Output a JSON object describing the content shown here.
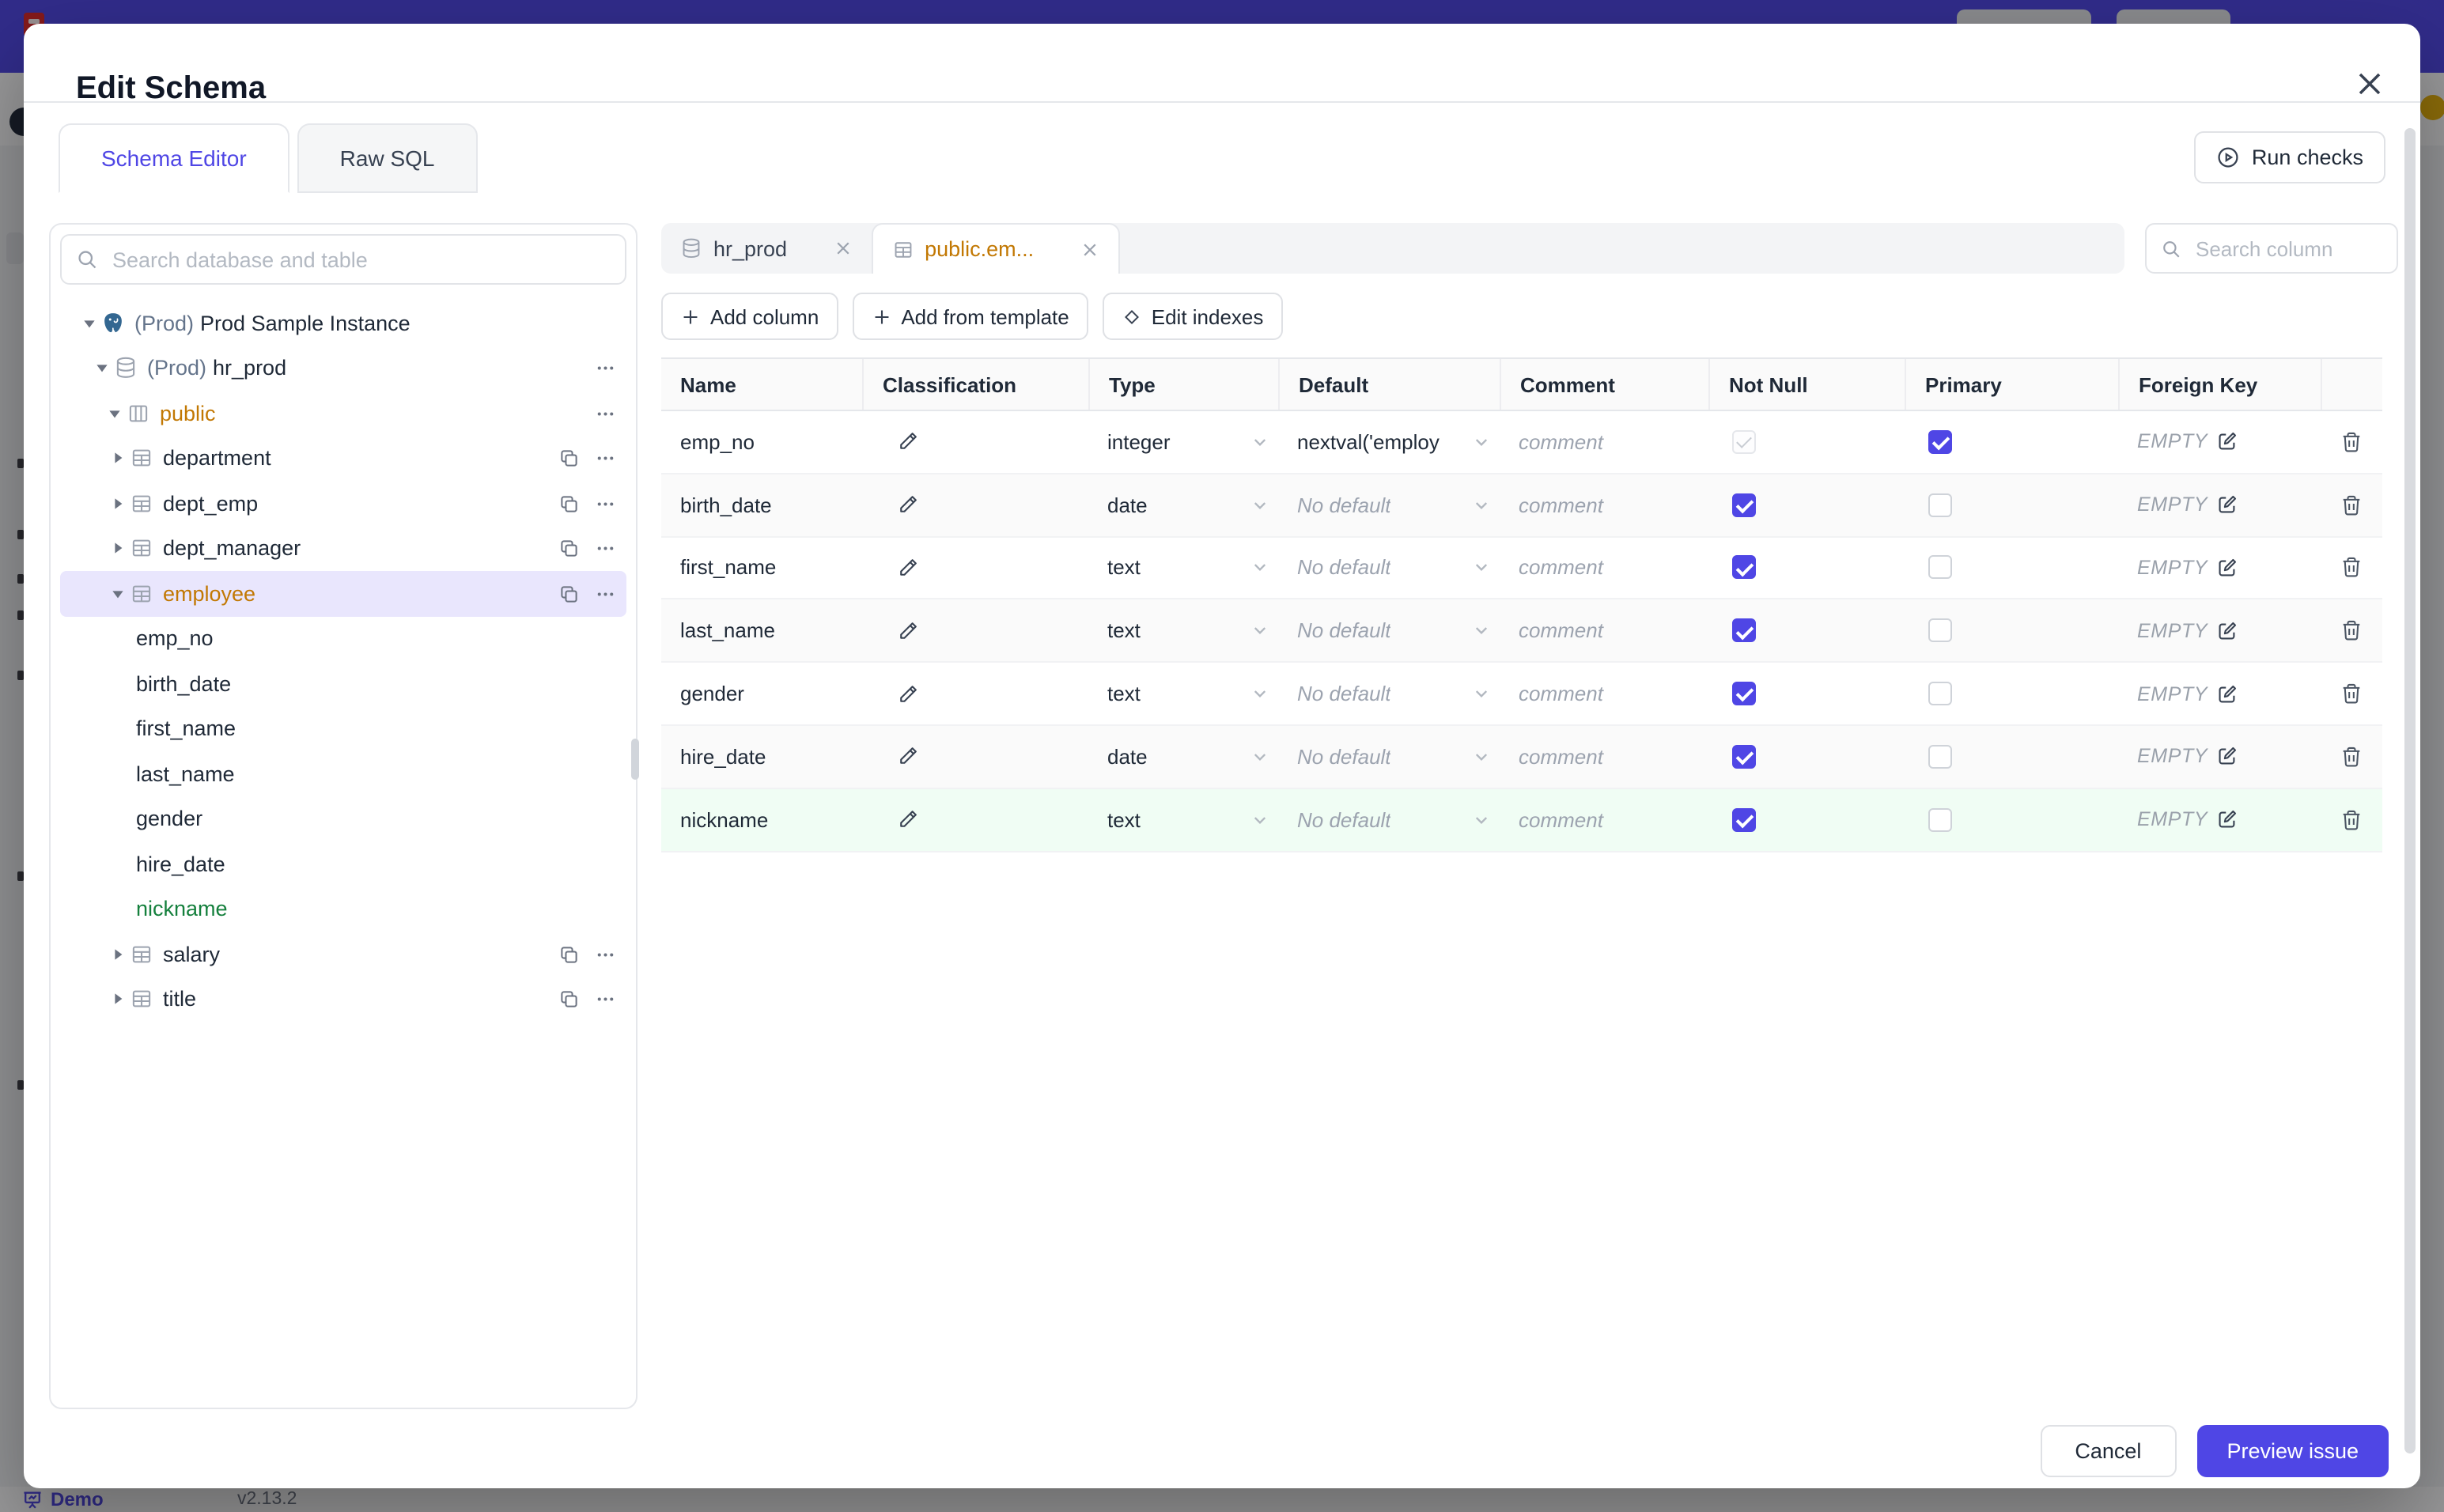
{
  "modal": {
    "title": "Edit Schema",
    "tabs": [
      {
        "label": "Schema Editor",
        "active": true
      },
      {
        "label": "Raw SQL",
        "active": false
      }
    ],
    "run_checks_label": "Run checks",
    "sidebar": {
      "search_placeholder": "Search database and table",
      "tree": [
        {
          "level": 0,
          "kind": "instance",
          "caret": "down",
          "icon": "postgres",
          "prefix": "(Prod)",
          "label": "Prod Sample Instance"
        },
        {
          "level": 1,
          "kind": "database",
          "caret": "down",
          "icon": "database",
          "prefix": "(Prod)",
          "label": "hr_prod",
          "actions": "dots"
        },
        {
          "level": 2,
          "kind": "schema",
          "caret": "down",
          "icon": "schema",
          "label": "public",
          "color": "amber",
          "actions": "dots"
        },
        {
          "level": 3,
          "kind": "table",
          "caret": "right",
          "icon": "table",
          "label": "department",
          "actions": "copy-dots"
        },
        {
          "level": 3,
          "kind": "table",
          "caret": "right",
          "icon": "table",
          "label": "dept_emp",
          "actions": "copy-dots"
        },
        {
          "level": 3,
          "kind": "table",
          "caret": "right",
          "icon": "table",
          "label": "dept_manager",
          "actions": "copy-dots"
        },
        {
          "level": 3,
          "kind": "table",
          "caret": "down",
          "icon": "table",
          "label": "employee",
          "color": "amber",
          "selected": true,
          "actions": "copy-dots"
        },
        {
          "level": 4,
          "kind": "column",
          "label": "emp_no"
        },
        {
          "level": 4,
          "kind": "column",
          "label": "birth_date"
        },
        {
          "level": 4,
          "kind": "column",
          "label": "first_name"
        },
        {
          "level": 4,
          "kind": "column",
          "label": "last_name"
        },
        {
          "level": 4,
          "kind": "column",
          "label": "gender"
        },
        {
          "level": 4,
          "kind": "column",
          "label": "hire_date"
        },
        {
          "level": 4,
          "kind": "column",
          "label": "nickname",
          "color": "green"
        },
        {
          "level": 3,
          "kind": "table",
          "caret": "right",
          "icon": "table",
          "label": "salary",
          "actions": "copy-dots"
        },
        {
          "level": 3,
          "kind": "table",
          "caret": "right",
          "icon": "table",
          "label": "title",
          "actions": "copy-dots"
        }
      ]
    },
    "editor": {
      "chips": [
        {
          "label": "hr_prod",
          "icon": "database",
          "active": false
        },
        {
          "label": "public.em...",
          "icon": "table",
          "active": true
        }
      ],
      "actions": [
        {
          "icon": "plus",
          "label": "Add column"
        },
        {
          "icon": "plus",
          "label": "Add from template"
        },
        {
          "icon": "diamond",
          "label": "Edit indexes"
        }
      ],
      "column_search_placeholder": "Search column",
      "table": {
        "headers": [
          "Name",
          "Classification",
          "Type",
          "Default",
          "Comment",
          "Not Null",
          "Primary",
          "Foreign Key"
        ],
        "comment_placeholder": "comment",
        "foreign_key_empty": "EMPTY",
        "rows": [
          {
            "name": "emp_no",
            "type": "integer",
            "default": "nextval('employ",
            "default_is_placeholder": false,
            "not_null": "disabled",
            "primary": true,
            "added": false
          },
          {
            "name": "birth_date",
            "type": "date",
            "default": "No default",
            "default_is_placeholder": true,
            "not_null": "checked",
            "primary": false,
            "added": false
          },
          {
            "name": "first_name",
            "type": "text",
            "default": "No default",
            "default_is_placeholder": true,
            "not_null": "checked",
            "primary": false,
            "added": false
          },
          {
            "name": "last_name",
            "type": "text",
            "default": "No default",
            "default_is_placeholder": true,
            "not_null": "checked",
            "primary": false,
            "added": false
          },
          {
            "name": "gender",
            "type": "text",
            "default": "No default",
            "default_is_placeholder": true,
            "not_null": "checked",
            "primary": false,
            "added": false
          },
          {
            "name": "hire_date",
            "type": "date",
            "default": "No default",
            "default_is_placeholder": true,
            "not_null": "checked",
            "primary": false,
            "added": false
          },
          {
            "name": "nickname",
            "type": "text",
            "default": "No default",
            "default_is_placeholder": true,
            "not_null": "checked",
            "primary": false,
            "added": true
          }
        ]
      }
    },
    "footer": {
      "cancel_label": "Cancel",
      "submit_label": "Preview issue"
    }
  },
  "page": {
    "footer": {
      "demo_label": "Demo",
      "version": "v2.13.2"
    }
  },
  "colors": {
    "accent": "#4f46e5",
    "modified_amber": "#c27803",
    "added_green": "#15803d",
    "added_row_bg": "#f0fdf4"
  }
}
